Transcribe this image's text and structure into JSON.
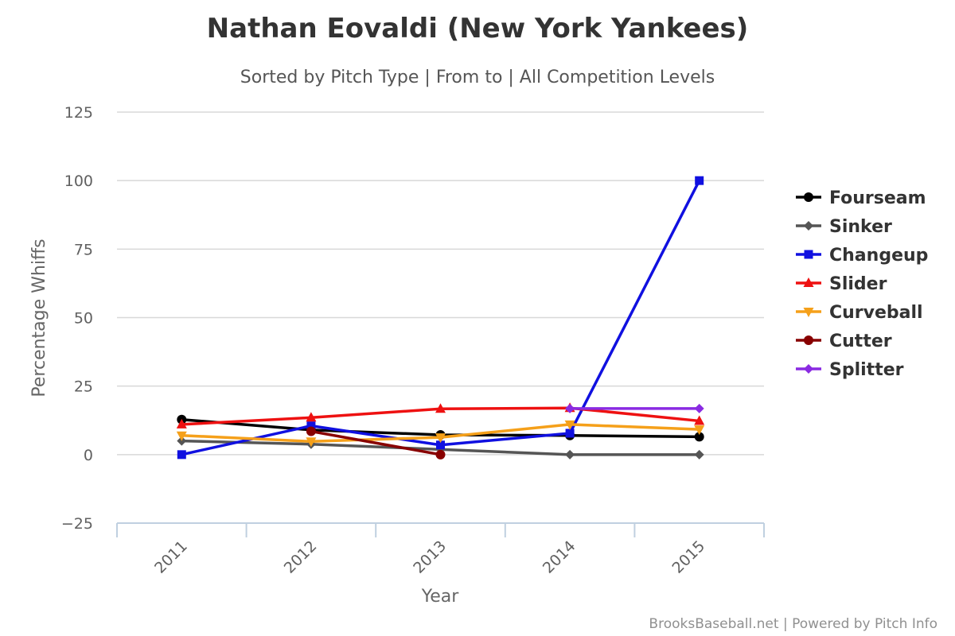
{
  "chart_data": {
    "type": "line",
    "title": "Nathan Eovaldi (New York Yankees)",
    "subtitle": "Sorted by Pitch Type | From to | All Competition Levels",
    "xlabel": "Year",
    "ylabel": "Percentage Whiffs",
    "categories": [
      "2011",
      "2012",
      "2013",
      "2014",
      "2015"
    ],
    "y_ticks": [
      -25,
      0,
      25,
      50,
      75,
      100,
      125
    ],
    "ylim": [
      -25,
      125
    ],
    "grid": true,
    "legend_position": "right",
    "series": [
      {
        "name": "Fourseam",
        "color": "#000000",
        "marker": "circle",
        "values": [
          12.8,
          9.0,
          7.2,
          7.0,
          6.5
        ]
      },
      {
        "name": "Sinker",
        "color": "#555555",
        "marker": "diamond",
        "values": [
          5.0,
          3.8,
          null,
          0.0,
          0.0
        ]
      },
      {
        "name": "Changeup",
        "color": "#1010e0",
        "marker": "square",
        "values": [
          0.0,
          10.5,
          3.5,
          7.8,
          100.0
        ]
      },
      {
        "name": "Slider",
        "color": "#ee1111",
        "marker": "triangle",
        "values": [
          11.0,
          13.5,
          16.7,
          17.0,
          12.3
        ]
      },
      {
        "name": "Curveball",
        "color": "#f5a01a",
        "marker": "triangle-down",
        "values": [
          7.0,
          4.8,
          6.3,
          11.0,
          9.2
        ]
      },
      {
        "name": "Cutter",
        "color": "#880000",
        "marker": "circle",
        "values": [
          null,
          8.5,
          0.0,
          null,
          null
        ]
      },
      {
        "name": "Splitter",
        "color": "#8a2be2",
        "marker": "diamond",
        "values": [
          null,
          null,
          null,
          16.8,
          16.8
        ]
      }
    ]
  },
  "credits": "BrooksBaseball.net | Powered by Pitch Info"
}
